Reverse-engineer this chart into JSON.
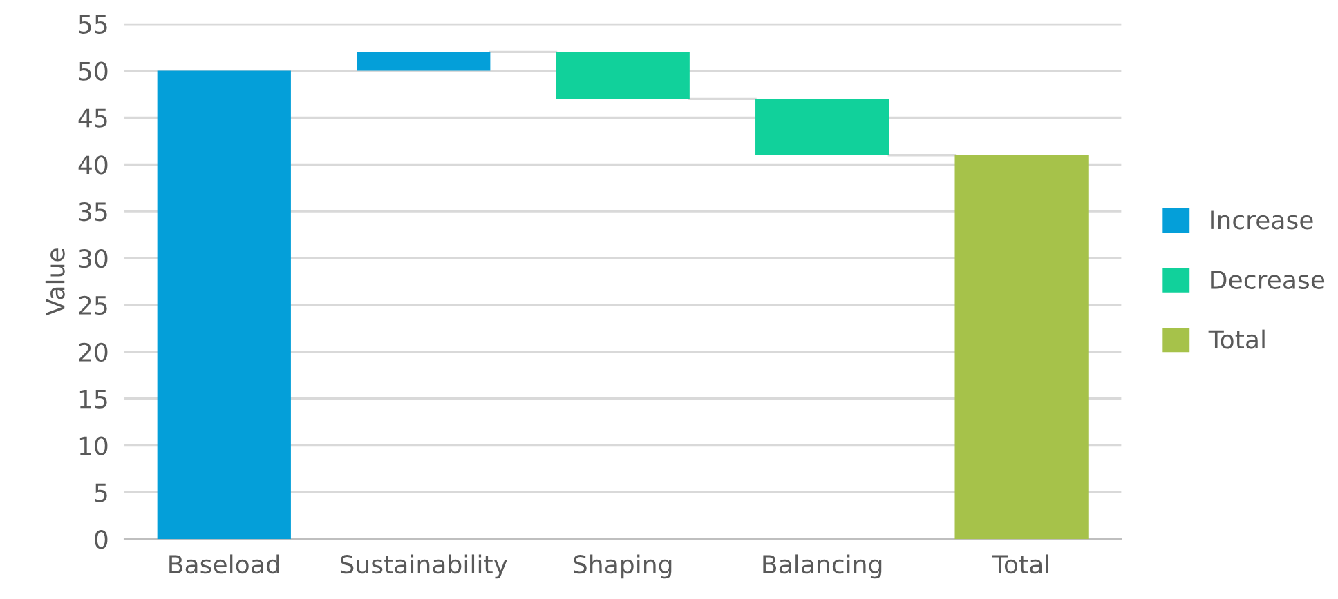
{
  "chart_data": {
    "type": "bar",
    "ylabel": "Value",
    "categories": [
      "Baseload",
      "Sustainability",
      "Shaping",
      "Balancing",
      "Total"
    ],
    "series": [
      {
        "name": "Increase",
        "color": "#049fd9",
        "values": [
          50,
          2,
          null,
          null,
          null
        ],
        "base": [
          0,
          50,
          null,
          null,
          null
        ]
      },
      {
        "name": "Decrease",
        "color": "#11d19b",
        "values": [
          null,
          null,
          -5,
          -6,
          null
        ],
        "base": [
          null,
          null,
          52,
          47,
          null
        ]
      },
      {
        "name": "Total",
        "color": "#a6c24a",
        "values": [
          null,
          null,
          null,
          null,
          41
        ],
        "base": [
          null,
          null,
          null,
          null,
          0
        ]
      }
    ],
    "ylim": [
      0,
      55
    ],
    "yticks": [
      0,
      5,
      10,
      15,
      20,
      25,
      30,
      35,
      40,
      45,
      50,
      55
    ],
    "grid": "y",
    "legend": "right"
  }
}
